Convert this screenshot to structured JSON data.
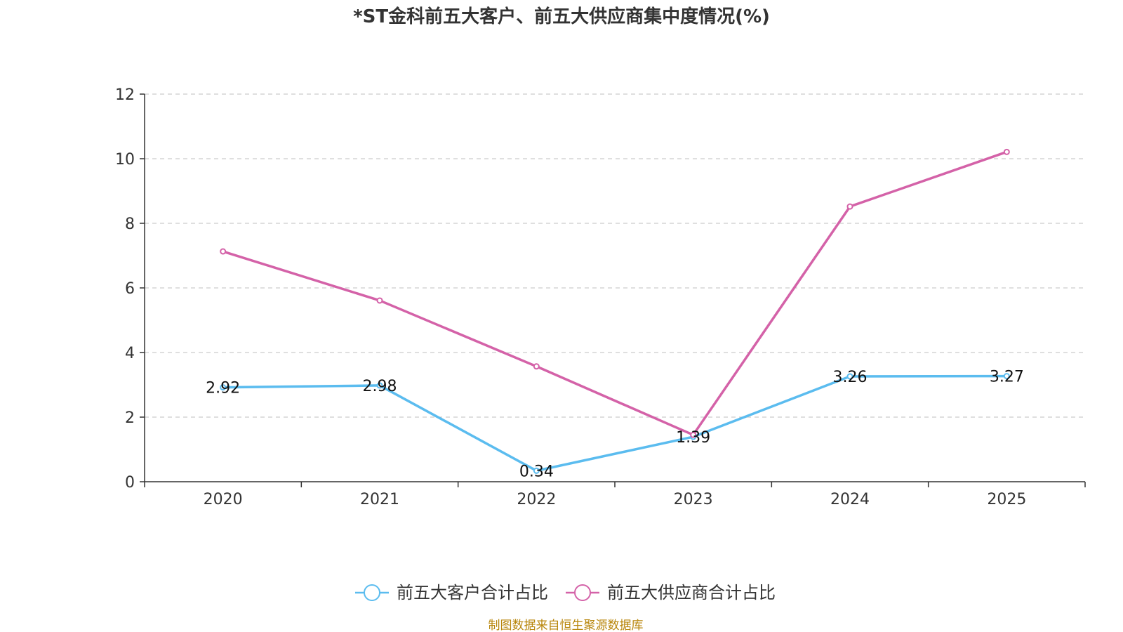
{
  "chart_data": {
    "type": "line",
    "title": "*ST金科前五大客户、前五大供应商集中度情况(%)",
    "categories": [
      "2020",
      "2021",
      "2022",
      "2023",
      "2024",
      "2025"
    ],
    "yticks": [
      "0",
      "2",
      "4",
      "6",
      "8",
      "10",
      "12"
    ],
    "ylim": [
      0,
      12
    ],
    "grid": true,
    "legend_position": "bottom",
    "series": [
      {
        "name": "前五大客户合计占比",
        "color": "#5bbcef",
        "values": [
          2.92,
          2.98,
          0.34,
          1.39,
          3.26,
          3.27
        ],
        "labels": [
          "2.92",
          "2.98",
          "0.34",
          "1.39",
          "3.26",
          "3.27"
        ]
      },
      {
        "name": "前五大供应商合计占比",
        "color": "#d462a8",
        "values": [
          7.13,
          5.61,
          3.57,
          1.45,
          8.52,
          10.21
        ]
      }
    ]
  },
  "source_note": "制图数据来自恒生聚源数据库"
}
